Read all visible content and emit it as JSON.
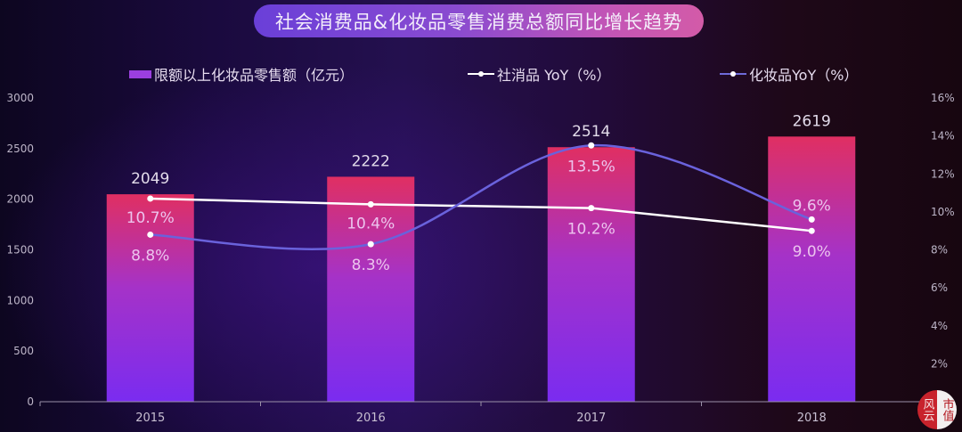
{
  "title": "社会消费品&化妆品零售消费总额同比增长趋势",
  "legend": {
    "bar": "限额以上化妆品零售额（亿元）",
    "line1": "社消品 YoY（%）",
    "line2": "化妆品YoY（%）"
  },
  "axes": {
    "left_ticks": [
      "0",
      "500",
      "1000",
      "1500",
      "2000",
      "2500",
      "3000"
    ],
    "right_ticks": [
      "2%",
      "4%",
      "6%",
      "8%",
      "10%",
      "12%",
      "14%",
      "16%"
    ],
    "x_ticks": [
      "2015",
      "2016",
      "2017",
      "2018"
    ]
  },
  "colors": {
    "bar_top": "#e02f62",
    "bar_bottom": "#7a2cf0",
    "line_social": "#ffffff",
    "line_cosmetics": "#6a62dc",
    "title_start": "#6a3fd8",
    "title_end": "#d35ba8"
  },
  "logo": {
    "left": "风云",
    "right": "市值"
  },
  "chart_data": {
    "type": "bar+line",
    "title": "社会消费品&化妆品零售消费总额同比增长趋势",
    "categories": [
      "2015",
      "2016",
      "2017",
      "2018"
    ],
    "series": [
      {
        "name": "限额以上化妆品零售额（亿元）",
        "type": "bar",
        "axis": "left",
        "values": [
          2049,
          2222,
          2514,
          2619
        ]
      },
      {
        "name": "社消品 YoY（%）",
        "type": "line",
        "axis": "right",
        "values": [
          10.7,
          10.4,
          10.2,
          9.0
        ]
      },
      {
        "name": "化妆品YoY（%）",
        "type": "line",
        "axis": "right",
        "smooth": true,
        "values": [
          8.8,
          8.3,
          13.5,
          9.6
        ]
      }
    ],
    "ylim_left": [
      0,
      3000
    ],
    "ylim_right": [
      0,
      16
    ],
    "grid": false,
    "legend_position": "top"
  }
}
